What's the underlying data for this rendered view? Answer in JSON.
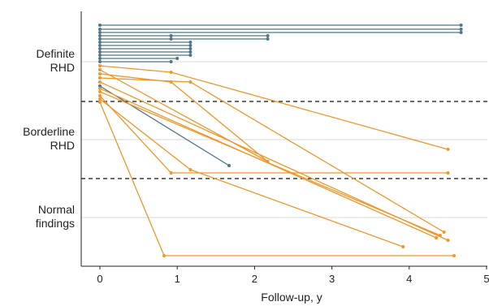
{
  "chart_data": {
    "type": "line",
    "xlabel": "Follow-up, y",
    "ylabel": "",
    "xlim": [
      -0.2,
      5
    ],
    "x_ticks": [
      0,
      1,
      2,
      3,
      4,
      5
    ],
    "x_tick_labels": [
      "0",
      "1",
      "2",
      "3",
      "4",
      "5"
    ],
    "categories": [
      {
        "key": "definite",
        "label_lines": [
          "Definite",
          "RHD"
        ]
      },
      {
        "key": "borderline",
        "label_lines": [
          "Borderline",
          "RHD"
        ]
      },
      {
        "key": "normal",
        "label_lines": [
          "Normal",
          "findings"
        ]
      }
    ],
    "category_separators": [
      "dashed",
      "dashed"
    ],
    "colors": {
      "persistent": "#4f7589",
      "changed": "#f0962a",
      "gridline": "#d9d9d9",
      "separator": "#111111"
    },
    "series": [
      {
        "group": "persistent",
        "points": [
          {
            "x": 0,
            "y": 4.67
          },
          {
            "x": 4.67,
            "y": 4.67
          }
        ]
      },
      {
        "group": "persistent",
        "points": [
          {
            "x": 0,
            "y": 4.67
          },
          {
            "x": 4.67,
            "y": 4.67
          }
        ]
      },
      {
        "group": "persistent",
        "points": [
          {
            "x": 0,
            "y": 4.67
          },
          {
            "x": 4.67,
            "y": 4.67
          }
        ]
      },
      {
        "group": "persistent",
        "points": [
          {
            "x": 0,
            "y": 0.92
          },
          {
            "x": 2.17,
            "y": 2.17
          }
        ]
      },
      {
        "group": "persistent",
        "points": [
          {
            "x": 0,
            "y": 0.92
          },
          {
            "x": 2.17,
            "y": 2.17
          }
        ]
      },
      {
        "group": "persistent",
        "points": [
          {
            "x": 0,
            "y": 1.17
          }
        ]
      },
      {
        "group": "persistent",
        "points": [
          {
            "x": 0,
            "y": 1.17
          }
        ]
      },
      {
        "group": "persistent",
        "points": [
          {
            "x": 0,
            "y": 1.17
          }
        ]
      },
      {
        "group": "persistent",
        "points": [
          {
            "x": 0,
            "y": 1.17
          }
        ]
      },
      {
        "group": "persistent",
        "points": [
          {
            "x": 0,
            "y": 1.17
          }
        ]
      },
      {
        "group": "persistent",
        "points": [
          {
            "x": 0,
            "y": 1.0
          }
        ]
      },
      {
        "group": "persistent",
        "points": [
          {
            "x": 0,
            "y": 0.92
          }
        ]
      },
      {
        "group": "changed",
        "points": [
          {
            "x": 0,
            "y": 0.92
          },
          {
            "x": 0.92,
            "y": 0.92
          },
          {
            "x": 4.5,
            "y": 4.5
          }
        ]
      },
      {
        "group": "changed",
        "points": [
          {
            "x": 0,
            "y": 4.5
          }
        ]
      },
      {
        "group": "changed",
        "points": [
          {
            "x": 0,
            "y": 0.92
          },
          {
            "x": 0.92,
            "y": 0.92
          }
        ]
      },
      {
        "group": "changed",
        "points": [
          {
            "x": 0,
            "y": 1.17
          },
          {
            "x": 2.17,
            "y": 2.17
          }
        ]
      },
      {
        "group": "persistent",
        "points": [
          {
            "x": 0,
            "y": 1.67
          }
        ]
      },
      {
        "group": "changed",
        "points": [
          {
            "x": 0,
            "y": 4.4
          }
        ]
      },
      {
        "group": "changed",
        "points": [
          {
            "x": 0,
            "y": 4.35
          }
        ]
      },
      {
        "group": "changed",
        "points": [
          {
            "x": 0,
            "y": 4.5
          }
        ]
      },
      {
        "group": "changed",
        "points": [
          {
            "x": 0,
            "y": 0.92
          },
          {
            "x": 4.5,
            "y": 4.5
          }
        ]
      },
      {
        "group": "changed",
        "points": [
          {
            "x": 0,
            "y": 1.17
          },
          {
            "x": 3.92,
            "y": 3.92
          }
        ]
      },
      {
        "group": "changed",
        "points": [
          {
            "x": 0,
            "y": 0.83
          },
          {
            "x": 4.58,
            "y": 4.58
          }
        ]
      }
    ]
  }
}
